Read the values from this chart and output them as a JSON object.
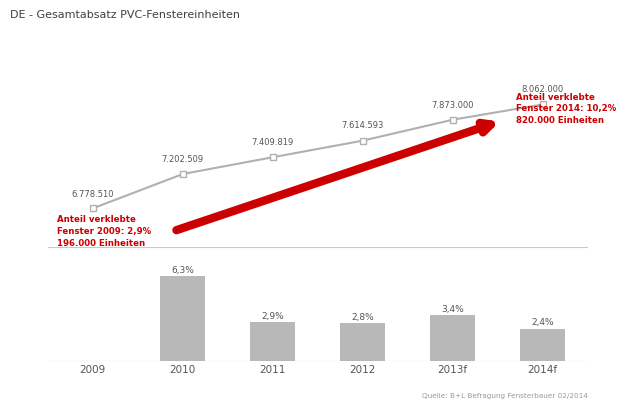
{
  "title": "DE - Gesamtabsatz PVC-Fenstereinheiten",
  "years": [
    "2009",
    "2010",
    "2011",
    "2012",
    "2013f",
    "2014f"
  ],
  "line_values": [
    6778510,
    7202509,
    7409819,
    7614593,
    7873000,
    8062000
  ],
  "line_labels": [
    "6.778.510",
    "7.202.509",
    "7.409.819",
    "7.614.593",
    "7.873.000",
    "8.062.000"
  ],
  "bar_values": [
    0,
    6.3,
    2.9,
    2.8,
    3.4,
    2.4
  ],
  "bar_labels": [
    "",
    "6,3%",
    "2,9%",
    "2,8%",
    "3,4%",
    "2,4%"
  ],
  "bar_color": "#b8b8b8",
  "line_color": "#b0b0b0",
  "arrow_color": "#cc0000",
  "title_color": "#404040",
  "label_color": "#555555",
  "annotation_red_color": "#cc0000",
  "source_text": "Quelle: B+L Befragung Fensterbauer 02/2014",
  "arrow_start_label": "Anteil verklebte\nFenster 2009: 2,9%\n196.000 Einheiten",
  "arrow_end_label": "Anteil verklebte\nFenster 2014: 10,2%\n820.000 Einheiten",
  "bg_color": "#ffffff",
  "separator_color": "#c8c8c8"
}
